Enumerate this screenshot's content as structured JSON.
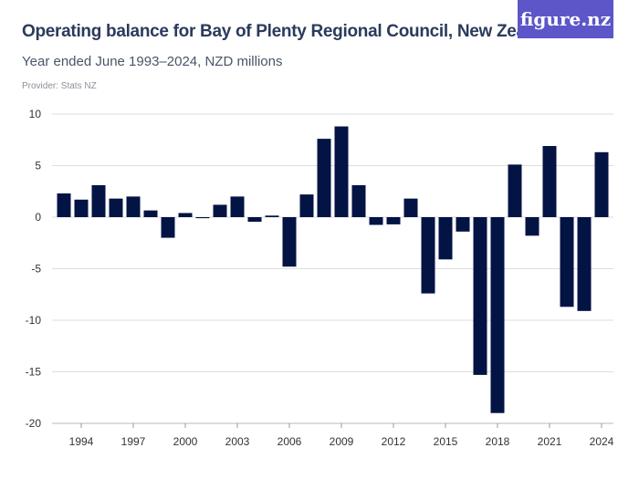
{
  "header": {
    "title": "Operating balance for Bay of Plenty Regional Council, New Zealand",
    "subtitle": "Year ended June 1993–2024, NZD millions",
    "provider": "Provider: Stats NZ",
    "logo": "figure.nz"
  },
  "colors": {
    "bar": "#031344",
    "logo_bg": "#5c56c9",
    "grid": "#dddddd"
  },
  "chart_data": {
    "type": "bar",
    "title": "Operating balance for Bay of Plenty Regional Council, New Zealand",
    "subtitle": "Year ended June 1993–2024, NZD millions",
    "categories": [
      1993,
      1994,
      1995,
      1996,
      1997,
      1998,
      1999,
      2000,
      2001,
      2002,
      2003,
      2004,
      2005,
      2006,
      2007,
      2008,
      2009,
      2010,
      2011,
      2012,
      2013,
      2014,
      2015,
      2016,
      2017,
      2018,
      2019,
      2020,
      2021,
      2022,
      2023,
      2024
    ],
    "values": [
      2.3,
      1.7,
      3.1,
      1.8,
      2.0,
      0.65,
      -2.0,
      0.4,
      -0.1,
      1.2,
      2.0,
      -0.45,
      0.15,
      -4.8,
      2.2,
      7.6,
      8.8,
      3.1,
      -0.75,
      -0.7,
      1.8,
      -7.4,
      -4.1,
      -1.4,
      -15.3,
      -19.0,
      5.1,
      -1.8,
      6.9,
      -8.7,
      -9.1,
      6.3
    ],
    "xticks": [
      "1994",
      "1997",
      "2000",
      "2003",
      "2006",
      "2009",
      "2012",
      "2015",
      "2018",
      "2021",
      "2024"
    ],
    "yticks": [
      "10",
      "5",
      "0",
      "-5",
      "-10",
      "-15",
      "-20"
    ],
    "ylim": [
      -20,
      10
    ],
    "grid": true,
    "legend": "none"
  }
}
